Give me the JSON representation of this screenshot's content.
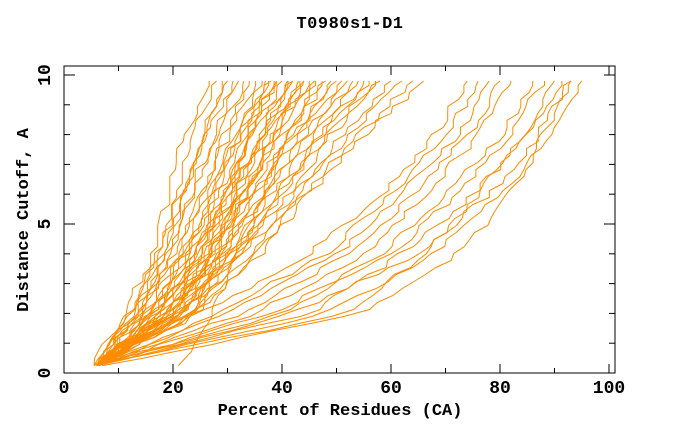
{
  "title": "T0980s1-D1",
  "colors": {
    "curve": "#ff8c00",
    "axis": "#000000",
    "text": "#000000",
    "background": "#ffffff"
  },
  "chart_data": {
    "type": "line",
    "title": "T0980s1-D1",
    "xlabel": "Percent of Residues (CA)",
    "ylabel": "Distance Cutoff, A",
    "xlim": [
      0,
      100
    ],
    "ylim": [
      0,
      10
    ],
    "x_major_ticks": [
      0,
      20,
      40,
      60,
      80,
      100
    ],
    "x_minor_tick_step": 10,
    "y_major_ticks": [
      0,
      5,
      10
    ],
    "y_minor_tick_step": 1,
    "grid": false,
    "legend": "none",
    "tick_style": "inward-mirrored",
    "series_cutoffs": [
      0.25,
      2,
      4,
      6,
      8,
      9.8
    ],
    "series_note": "each series = percent of residues (CA) under the distance cutoffs listed in series_cutoffs; one series per predicted model",
    "series": [
      [
        5.5,
        11,
        16,
        19,
        22,
        26
      ],
      [
        5.5,
        12,
        17,
        20,
        24,
        28
      ],
      [
        6,
        12,
        17,
        21,
        25,
        29
      ],
      [
        5.5,
        13,
        18,
        22,
        26,
        30
      ],
      [
        6,
        13,
        18,
        22,
        26,
        31
      ],
      [
        6,
        14,
        19,
        23,
        27,
        32
      ],
      [
        5.5,
        13,
        19,
        24,
        28,
        33
      ],
      [
        6,
        14,
        20,
        25,
        29,
        34
      ],
      [
        6,
        15,
        21,
        25,
        30,
        35
      ],
      [
        6,
        14,
        21,
        26,
        31,
        36
      ],
      [
        6.5,
        15,
        22,
        27,
        32,
        37
      ],
      [
        6,
        16,
        22,
        27,
        32,
        38
      ],
      [
        6,
        15,
        23,
        28,
        33,
        39
      ],
      [
        6.5,
        16,
        23,
        29,
        34,
        40
      ],
      [
        6,
        17,
        24,
        29,
        35,
        41
      ],
      [
        6.5,
        16,
        24,
        30,
        36,
        42
      ],
      [
        6,
        17,
        25,
        31,
        37,
        43
      ],
      [
        6.5,
        18,
        25,
        31,
        37,
        44
      ],
      [
        6,
        17,
        26,
        32,
        38,
        45
      ],
      [
        6.5,
        18,
        26,
        33,
        39,
        46
      ],
      [
        6,
        19,
        27,
        33,
        40,
        47
      ],
      [
        6.5,
        18,
        27,
        34,
        41,
        48
      ],
      [
        6,
        19,
        28,
        35,
        42,
        49
      ],
      [
        6.5,
        20,
        28,
        35,
        42,
        50
      ],
      [
        6,
        19,
        29,
        36,
        43,
        51
      ],
      [
        6.5,
        20,
        29,
        37,
        44,
        52
      ],
      [
        6,
        21,
        30,
        37,
        45,
        53
      ],
      [
        6.5,
        20,
        30,
        38,
        46,
        54
      ],
      [
        6,
        21,
        31,
        39,
        47,
        55
      ],
      [
        6.5,
        22,
        31,
        39,
        47,
        56
      ],
      [
        6,
        21,
        32,
        40,
        48,
        57
      ],
      [
        6.5,
        22,
        32,
        41,
        49,
        58
      ],
      [
        6,
        23,
        33,
        42,
        51,
        60
      ],
      [
        6.5,
        23,
        34,
        43,
        52,
        62
      ],
      [
        6,
        24,
        35,
        44,
        54,
        64
      ],
      [
        6.5,
        24,
        36,
        45,
        55,
        66
      ],
      [
        6,
        18,
        24,
        28,
        32,
        37
      ],
      [
        6,
        20,
        26,
        30,
        34,
        39
      ],
      [
        6,
        22,
        27,
        31,
        36,
        41
      ],
      [
        6,
        24,
        29,
        33,
        38,
        43
      ],
      [
        6,
        19,
        25,
        29,
        34,
        38
      ],
      [
        6,
        21,
        27,
        32,
        36,
        42
      ],
      [
        6,
        23,
        28,
        33,
        38,
        44
      ],
      [
        21,
        27,
        32,
        36,
        41,
        46
      ],
      [
        6,
        25,
        45,
        58,
        68,
        74
      ],
      [
        6,
        30,
        50,
        62,
        72,
        78
      ],
      [
        6,
        28,
        48,
        60,
        70,
        76
      ],
      [
        6,
        35,
        55,
        66,
        76,
        82
      ],
      [
        6,
        40,
        58,
        70,
        80,
        86
      ],
      [
        6,
        38,
        60,
        72,
        82,
        88
      ],
      [
        6,
        45,
        62,
        75,
        85,
        91
      ],
      [
        6,
        42,
        65,
        78,
        87,
        93
      ],
      [
        6,
        48,
        68,
        80,
        89,
        95
      ],
      [
        6,
        33,
        52,
        64,
        74,
        80
      ],
      [
        7,
        55,
        72,
        82,
        88,
        93
      ],
      [
        6,
        52,
        66,
        76,
        84,
        90
      ]
    ]
  }
}
